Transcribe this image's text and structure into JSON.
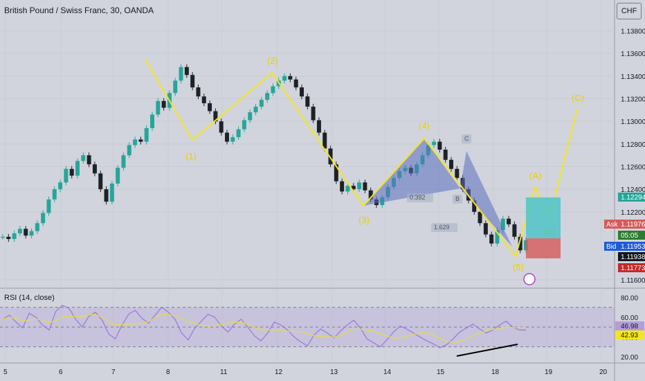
{
  "legend_title": "British Pound / Swiss Franc, 30, OANDA",
  "currency_button": "CHF",
  "rsi_legend": "RSI (14, close)",
  "colors": {
    "background": "#d1d4dc",
    "candle_up": "#26a69a",
    "candle_down": "#1e2226",
    "wave_line": "#f5e61b",
    "pattern_fill": "#5b6fbf",
    "target_zone": "#4fc3c7",
    "stop_zone": "#d65a5a",
    "rsi_line": "#9c7cdc",
    "rsi_ma": "#e8d94a"
  },
  "chart_data": [
    {
      "type": "line",
      "title": "",
      "price_axis": {
        "ticks": [
          "1.13800",
          "1.13600",
          "1.13400",
          "1.13200",
          "1.13000",
          "1.12800",
          "1.12600",
          "1.12400",
          "1.12200",
          "1.11600"
        ],
        "tick_values": [
          1.138,
          1.136,
          1.134,
          1.132,
          1.13,
          1.128,
          1.126,
          1.124,
          1.122,
          1.116
        ],
        "ylim": [
          1.1155,
          1.1395
        ]
      },
      "time_axis": {
        "ticks": [
          "5",
          "6",
          "7",
          "8",
          "11",
          "12",
          "13",
          "14",
          "15",
          "18",
          "19",
          "20"
        ]
      },
      "price_tags": [
        {
          "label": "Ask",
          "value": "1.11976",
          "color": "#d65a5a"
        },
        {
          "label": "",
          "value": "05:05",
          "color": "#2e7d32"
        },
        {
          "label": "Bid",
          "value": "1.11953",
          "color": "#1e5bd6"
        },
        {
          "label": "",
          "value": "1.11938",
          "color": "#131722"
        },
        {
          "label": "",
          "value": "1.12294",
          "color": "#26a69a"
        },
        {
          "label": "",
          "value": "1.11773",
          "color": "#c62828"
        }
      ],
      "elliott_wave": [
        {
          "label": "",
          "x": "7",
          "y": 1.135
        },
        {
          "label": "(1)",
          "x": "8",
          "y": 1.1281
        },
        {
          "label": "(2)",
          "x": "12",
          "y": 1.1341
        },
        {
          "label": "(3)",
          "x": "13",
          "y": 1.1224
        },
        {
          "label": "(4)",
          "x": "14",
          "y": 1.1283
        },
        {
          "label": "(5)",
          "x": "18",
          "y": 1.1186
        },
        {
          "label": "(A)",
          "x": "18",
          "y": 1.124
        },
        {
          "label": "(B)",
          "x": "19",
          "y": 1.1213
        },
        {
          "label": "(C)",
          "x": "19",
          "y": 1.1307
        }
      ],
      "harmonic_labels": [
        "C",
        "B",
        "0.382",
        "1.629"
      ],
      "series": [
        {
          "values": [
            1.1198,
            1.1196,
            1.1201,
            1.1205,
            1.1199,
            1.1203,
            1.121,
            1.1219,
            1.1231,
            1.124,
            1.1246,
            1.1258,
            1.1252,
            1.1265,
            1.127,
            1.1262,
            1.1254,
            1.124,
            1.1229,
            1.1245,
            1.1259,
            1.127,
            1.1279,
            1.1284,
            1.1282,
            1.1294,
            1.1306,
            1.1318,
            1.1312,
            1.1325,
            1.1336,
            1.1348,
            1.1341,
            1.133,
            1.1322,
            1.1316,
            1.1309,
            1.13,
            1.129,
            1.1282,
            1.1286,
            1.1293,
            1.1301,
            1.1308,
            1.1313,
            1.1319,
            1.1325,
            1.1331,
            1.1336,
            1.134,
            1.1337,
            1.133,
            1.1322,
            1.1313,
            1.1301,
            1.129,
            1.1276,
            1.1262,
            1.1247,
            1.1238,
            1.1243,
            1.124,
            1.1246,
            1.1239,
            1.1231,
            1.1226,
            1.1233,
            1.1242,
            1.125,
            1.1256,
            1.1259,
            1.1254,
            1.1262,
            1.127,
            1.1279,
            1.1282,
            1.1275,
            1.1266,
            1.1258,
            1.125,
            1.124,
            1.123,
            1.122,
            1.121,
            1.12,
            1.1192,
            1.1204,
            1.1214,
            1.1209,
            1.1198,
            1.1186,
            1.1195
          ]
        },
        {
          "name": "RSI",
          "axis": {
            "ticks": [
              "80.00",
              "60.00",
              "40.00",
              "20.00"
            ],
            "tick_values": [
              80,
              60,
              40,
              20
            ],
            "ylim": [
              15,
              88
            ]
          },
          "rsi_tags": [
            "46.98",
            "42.93"
          ],
          "values": [
            58,
            62,
            55,
            49,
            64,
            60,
            52,
            47,
            66,
            72,
            69,
            58,
            50,
            61,
            65,
            57,
            43,
            38,
            52,
            63,
            67,
            59,
            54,
            62,
            70,
            65,
            58,
            44,
            37,
            49,
            56,
            63,
            60,
            51,
            45,
            53,
            58,
            50,
            41,
            36,
            44,
            55,
            52,
            47,
            40,
            35,
            31,
            42,
            48,
            44,
            39,
            46,
            52,
            57,
            49,
            38,
            34,
            30,
            37,
            45,
            51,
            48,
            44,
            40,
            36,
            33,
            29,
            32,
            38,
            45,
            49,
            53,
            48,
            44,
            47,
            52,
            56,
            50,
            47,
            46.98
          ]
        }
      ]
    }
  ]
}
